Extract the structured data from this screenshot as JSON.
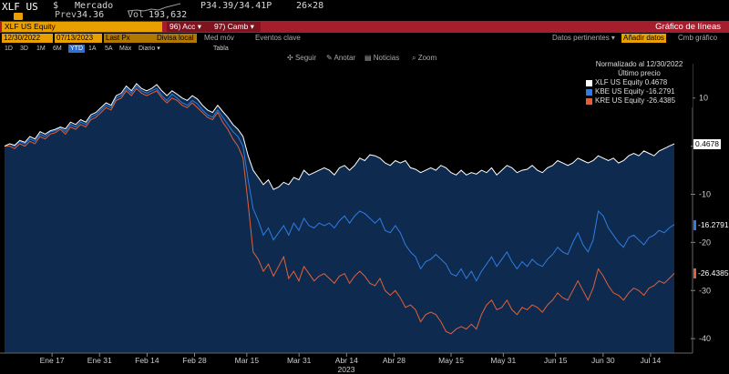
{
  "header": {
    "ticker": "XLF US",
    "dollar": "$",
    "market_label": "Mercado",
    "prev_label": "Prev",
    "prev_value": "34.36",
    "vol_label": "Vol",
    "vol_value": "193,632",
    "quote": "P34.39/34.41P",
    "size": "26×28"
  },
  "toolbar": {
    "security": "XLF US Equity",
    "secondary_field": "",
    "acc_label": "96) Acc ▾",
    "camb_label": "97) Camb ▾",
    "title": "Gráfico de líneas"
  },
  "controls": {
    "start_date": "12/30/2022",
    "end_date": "07/13/2023",
    "field": "Last Px",
    "currency": "Divisa local",
    "moving_avg": "Med móv",
    "events": "Eventos clave",
    "periods": [
      "1D",
      "3D",
      "1M",
      "6M",
      "YTD",
      "1A",
      "5A",
      "Máx"
    ],
    "period_selected": "YTD",
    "freq": "Diario ▾",
    "table": "Tabla",
    "pertinent": "Datos pertinentes ▾",
    "add_data": "Añadir datos",
    "cmb_chart": "Cmb gráfico"
  },
  "chart_toolbar": {
    "follow": "Seguir",
    "annotate": "Anotar",
    "news": "Noticias",
    "zoom": "Zoom"
  },
  "legend": {
    "normalized": "Normalizado al 12/30/2022",
    "last_price": "Último precio",
    "items": [
      {
        "text": "XLF US Equity   0.4678",
        "color": "#ffffff"
      },
      {
        "text": "KBE US Equity  -16.2791",
        "color": "#2f7de0"
      },
      {
        "text": "KRE US Equity  -26.4385",
        "color": "#e0603a"
      }
    ]
  },
  "colors": {
    "xlf": "#ffffff",
    "kbe": "#2f7de0",
    "kre": "#e0603a",
    "area": "#0f2a4f",
    "background": "#000000"
  },
  "chart_data": {
    "type": "line",
    "year_label": "2023",
    "x_tick_labels": [
      "Ene 17",
      "Ene 31",
      "Feb 14",
      "Feb 28",
      "Mar 15",
      "Mar 31",
      "Abr 14",
      "Abr 28",
      "May 15",
      "May 31",
      "Jun 15",
      "Jun 30",
      "Jul 14"
    ],
    "y_ticks": [
      10,
      0,
      -10,
      -20,
      -30,
      -40
    ],
    "y_tick_labels": [
      "10",
      "",
      "-10",
      "-20",
      "-30",
      "-40"
    ],
    "ylim": [
      -43,
      16
    ],
    "x_count": 133,
    "x_ticks_index": [
      10,
      20,
      30,
      40,
      51,
      62,
      72,
      82,
      94,
      105,
      116,
      126,
      136
    ],
    "series": [
      {
        "name": "XLF US Equity",
        "last": "0.4678",
        "values": [
          0,
          0.5,
          0.2,
          1.2,
          0.8,
          2.0,
          1.5,
          3.0,
          2.5,
          3.2,
          3.5,
          4.0,
          3.6,
          5.0,
          4.5,
          5.5,
          5.0,
          6.5,
          7.0,
          8.0,
          9.0,
          8.5,
          10.5,
          11.0,
          12.5,
          11.5,
          13.0,
          12.0,
          11.5,
          12.0,
          12.8,
          11.5,
          10.5,
          11.5,
          10.8,
          10.0,
          9.5,
          10.5,
          9.8,
          8.5,
          7.5,
          7.0,
          8.5,
          7.2,
          6.0,
          4.5,
          3.5,
          2.0,
          -2.0,
          -5.0,
          -6.5,
          -8.0,
          -7.0,
          -9.0,
          -8.5,
          -7.5,
          -8.0,
          -6.5,
          -7.0,
          -5.0,
          -6.0,
          -5.5,
          -5.0,
          -4.5,
          -5.0,
          -6.0,
          -4.5,
          -4.0,
          -5.0,
          -4.0,
          -2.5,
          -3.0,
          -1.8,
          -2.0,
          -2.5,
          -3.5,
          -4.0,
          -3.0,
          -3.5,
          -3.0,
          -4.5,
          -4.8,
          -5.5,
          -5.0,
          -4.5,
          -5.0,
          -4.0,
          -4.5,
          -5.5,
          -6.0,
          -5.0,
          -6.0,
          -5.5,
          -5.8,
          -5.0,
          -5.5,
          -4.5,
          -6.0,
          -5.0,
          -4.0,
          -4.5,
          -5.5,
          -5.0,
          -4.8,
          -4.0,
          -5.0,
          -5.5,
          -4.5,
          -4.0,
          -3.0,
          -3.5,
          -4.0,
          -3.5,
          -2.5,
          -3.0,
          -3.5,
          -3.0,
          -2.0,
          -2.5,
          -3.0,
          -2.5,
          -3.5,
          -3.0,
          -2.0,
          -1.5,
          -2.0,
          -1.0,
          -1.5,
          -2.0,
          -1.0,
          -0.5,
          0.0,
          0.4678
        ]
      },
      {
        "name": "KBE US Equity",
        "last": "-16.2791",
        "values": [
          0,
          0.5,
          0.0,
          1.0,
          0.5,
          1.5,
          1.0,
          2.5,
          2.0,
          3.0,
          3.2,
          3.8,
          3.0,
          4.5,
          4.0,
          5.0,
          4.5,
          6.0,
          6.5,
          7.5,
          8.5,
          8.0,
          10.0,
          10.5,
          12.0,
          11.0,
          12.5,
          11.5,
          11.0,
          11.5,
          12.0,
          10.5,
          9.5,
          10.8,
          10.0,
          9.0,
          8.5,
          9.5,
          8.8,
          7.5,
          6.5,
          6.0,
          7.5,
          6.0,
          4.5,
          3.0,
          2.0,
          0.0,
          -7.0,
          -13.0,
          -15.5,
          -18.5,
          -17.0,
          -19.5,
          -18.0,
          -16.5,
          -18.5,
          -16.0,
          -17.5,
          -15.0,
          -16.5,
          -17.0,
          -16.0,
          -16.5,
          -16.0,
          -17.0,
          -15.5,
          -14.5,
          -16.0,
          -14.5,
          -13.5,
          -14.0,
          -15.0,
          -16.0,
          -15.0,
          -17.5,
          -18.0,
          -16.5,
          -18.0,
          -20.5,
          -22.0,
          -23.0,
          -25.5,
          -24.0,
          -23.5,
          -22.5,
          -23.5,
          -24.5,
          -26.5,
          -27.0,
          -25.5,
          -27.5,
          -26.0,
          -28.0,
          -26.0,
          -24.5,
          -23.0,
          -25.0,
          -23.5,
          -22.0,
          -24.0,
          -25.5,
          -24.0,
          -25.0,
          -23.5,
          -24.5,
          -25.0,
          -23.5,
          -22.5,
          -21.0,
          -22.0,
          -22.5,
          -20.0,
          -18.0,
          -20.5,
          -22.0,
          -19.5,
          -13.5,
          -14.5,
          -17.0,
          -18.5,
          -20.0,
          -21.0,
          -19.0,
          -18.5,
          -19.5,
          -20.5,
          -19.0,
          -18.5,
          -17.5,
          -18.0,
          -17.0,
          -16.2791
        ]
      },
      {
        "name": "KRE US Equity",
        "last": "-26.4385",
        "values": [
          0,
          0.0,
          -0.5,
          0.5,
          0.0,
          1.0,
          0.5,
          2.0,
          1.5,
          2.5,
          2.8,
          3.5,
          2.5,
          4.0,
          3.5,
          4.5,
          4.0,
          5.5,
          6.0,
          7.0,
          8.0,
          7.5,
          9.5,
          10.0,
          11.5,
          10.5,
          12.0,
          11.0,
          10.5,
          11.0,
          11.5,
          10.0,
          9.0,
          10.0,
          9.5,
          8.5,
          8.0,
          9.0,
          8.0,
          7.0,
          6.0,
          5.5,
          7.0,
          5.0,
          3.5,
          1.5,
          0.0,
          -2.5,
          -12.0,
          -22.0,
          -23.5,
          -26.0,
          -24.5,
          -27.0,
          -25.0,
          -23.0,
          -27.5,
          -26.0,
          -28.0,
          -25.0,
          -26.5,
          -28.0,
          -27.0,
          -26.5,
          -27.5,
          -28.5,
          -27.0,
          -26.5,
          -28.5,
          -27.0,
          -26.0,
          -27.0,
          -28.5,
          -29.0,
          -27.5,
          -30.0,
          -31.0,
          -30.0,
          -31.5,
          -33.5,
          -33.0,
          -34.0,
          -36.5,
          -35.0,
          -34.5,
          -35.0,
          -36.5,
          -38.5,
          -39.0,
          -38.0,
          -37.5,
          -38.0,
          -37.0,
          -38.0,
          -35.0,
          -33.0,
          -32.0,
          -34.0,
          -33.5,
          -32.0,
          -34.0,
          -35.0,
          -33.5,
          -34.0,
          -33.0,
          -33.5,
          -34.5,
          -33.0,
          -32.0,
          -30.5,
          -31.5,
          -32.0,
          -30.0,
          -28.0,
          -30.0,
          -32.0,
          -29.5,
          -25.5,
          -27.0,
          -29.0,
          -30.5,
          -31.0,
          -32.0,
          -30.5,
          -29.5,
          -30.0,
          -31.0,
          -29.5,
          -29.0,
          -28.0,
          -28.5,
          -27.5,
          -26.4385
        ]
      }
    ]
  }
}
